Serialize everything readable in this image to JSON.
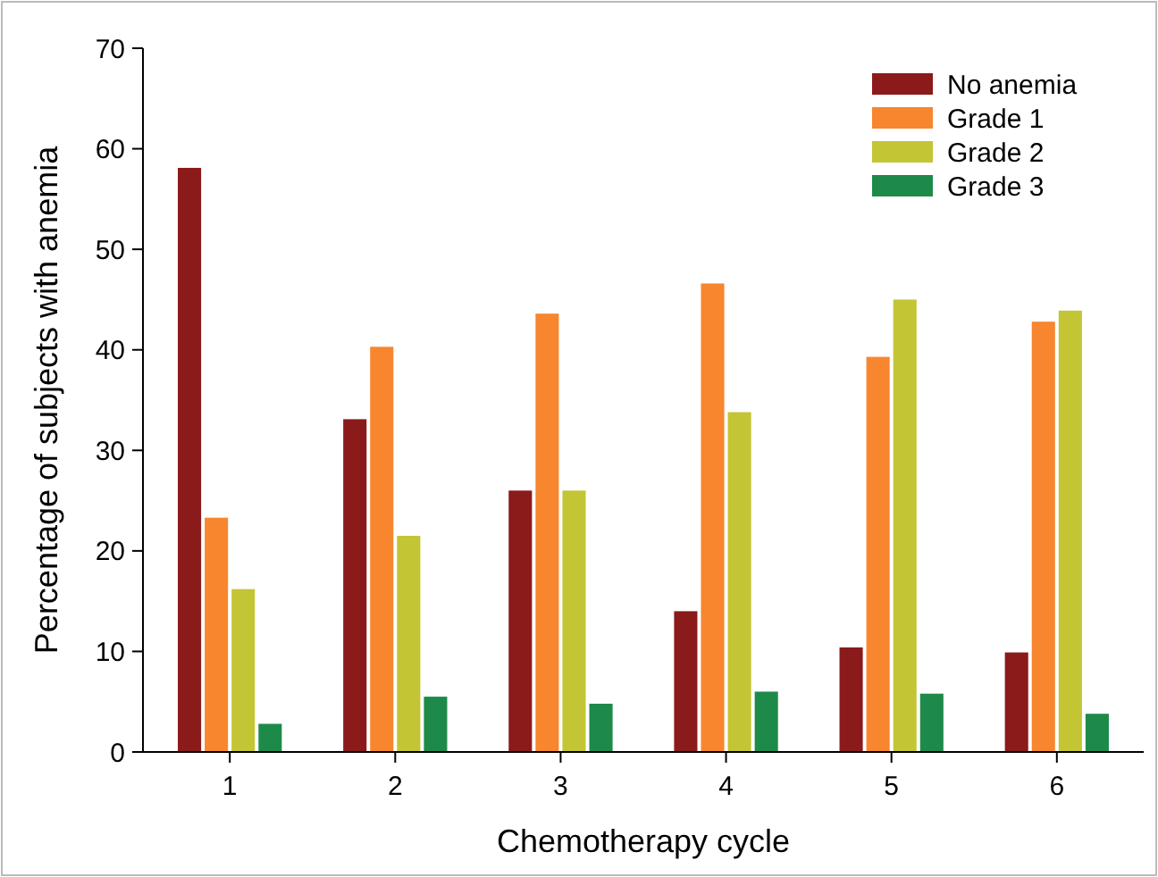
{
  "chart_data": {
    "type": "bar",
    "xlabel": "Chemotherapy cycle",
    "ylabel": "Percentage of subjects with anemia",
    "categories": [
      "1",
      "2",
      "3",
      "4",
      "5",
      "6"
    ],
    "series": [
      {
        "name": "No anemia",
        "color": "#8b1a1a",
        "values": [
          58.1,
          33.1,
          26,
          14,
          10.4,
          9.9
        ]
      },
      {
        "name": "Grade 1",
        "color": "#f7862f",
        "values": [
          23.3,
          40.3,
          43.6,
          46.6,
          39.3,
          42.8
        ]
      },
      {
        "name": "Grade 2",
        "color": "#c3c535",
        "values": [
          16.2,
          21.5,
          26,
          33.8,
          45,
          43.9
        ]
      },
      {
        "name": "Grade 3",
        "color": "#1e8a4a",
        "values": [
          2.8,
          5.5,
          4.8,
          6,
          5.8,
          3.8
        ]
      }
    ],
    "ylim": [
      0,
      70
    ],
    "yticks": [
      0,
      10,
      20,
      30,
      40,
      50,
      60,
      70
    ],
    "grid": false,
    "legend": "top right"
  }
}
